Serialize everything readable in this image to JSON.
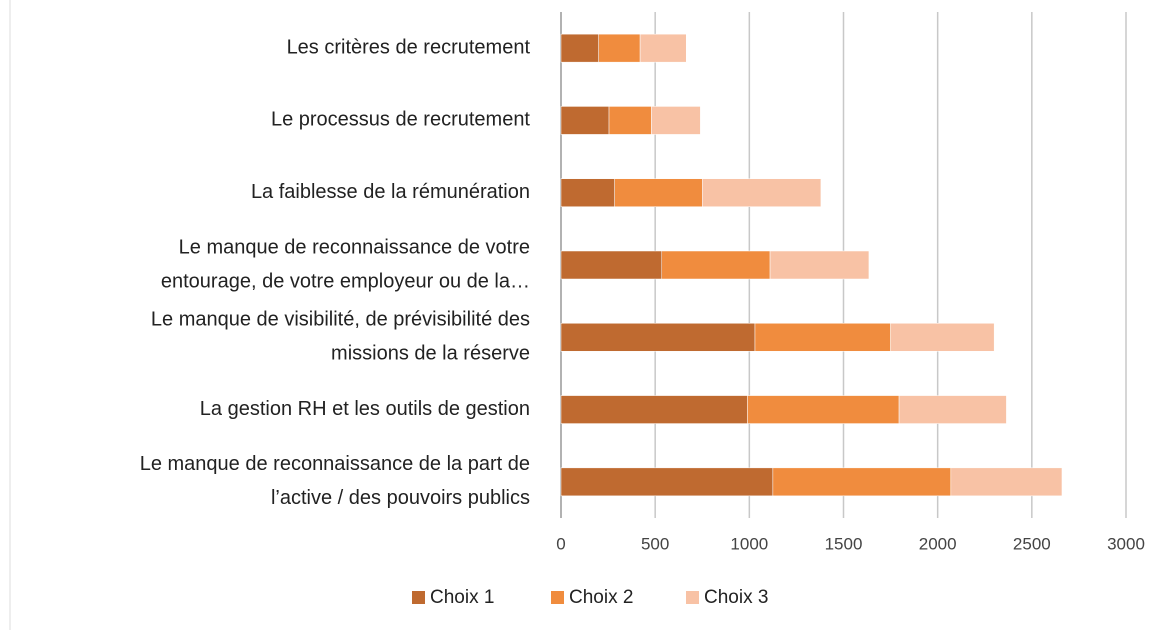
{
  "chart_data": {
    "type": "stacked-bar-horizontal",
    "categories": [
      [
        "Les critères de recrutement"
      ],
      [
        "Le processus de recrutement"
      ],
      [
        "La faiblesse de la rémunération"
      ],
      [
        "Le manque de reconnaissance de votre",
        "entourage, de votre employeur ou de la…"
      ],
      [
        "Le manque de visibilité, de prévisibilité des",
        "missions de la réserve"
      ],
      [
        "La gestion RH et les outils de gestion"
      ],
      [
        "Le manque de reconnaissance de la part de",
        "l’active / des pouvoirs publics"
      ]
    ],
    "series": [
      {
        "name": "Choix 1",
        "color": "#bf6a30",
        "values": [
          200,
          255,
          285,
          535,
          1030,
          990,
          1125
        ]
      },
      {
        "name": "Choix 2",
        "color": "#f08c3e",
        "values": [
          220,
          225,
          465,
          575,
          720,
          805,
          945
        ]
      },
      {
        "name": "Choix 3",
        "color": "#f8c2a5",
        "values": [
          245,
          260,
          630,
          525,
          550,
          570,
          590
        ]
      }
    ],
    "xlim": [
      0,
      3000
    ],
    "xticks": [
      0,
      500,
      1000,
      1500,
      2000,
      2500,
      3000
    ],
    "grid": true,
    "legend": "bottom"
  }
}
